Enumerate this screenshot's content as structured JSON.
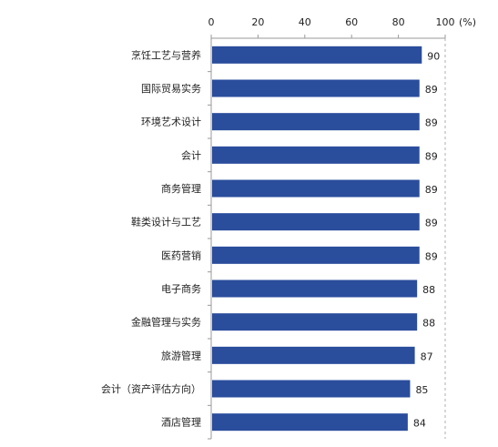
{
  "chart_data": {
    "type": "bar",
    "orientation": "horizontal",
    "categories": [
      "烹饪工艺与营养",
      "国际贸易实务",
      "环境艺术设计",
      "会计",
      "商务管理",
      "鞋类设计与工艺",
      "医药营销",
      "电子商务",
      "金融管理与实务",
      "旅游管理",
      "会计（资产评估方向）",
      "酒店管理"
    ],
    "values": [
      90,
      89,
      89,
      89,
      89,
      89,
      89,
      88,
      88,
      87,
      85,
      84
    ],
    "data_labels": [
      "90",
      "89",
      "89",
      "89",
      "89",
      "89",
      "89",
      "88",
      "88",
      "87",
      "85",
      "84"
    ],
    "title": "",
    "xlabel": "",
    "ylabel": "",
    "xlim": [
      0,
      100
    ],
    "xticks": [
      0,
      20,
      40,
      60,
      80,
      100
    ],
    "xtick_labels": [
      "0",
      "20",
      "40",
      "60",
      "80",
      "100"
    ],
    "x_unit_label": "(%)",
    "x_axis_position": "top",
    "grid": false,
    "reference_line_at": 100,
    "bar_color": "#2A4D9C",
    "axis_color": "#9A9A9A",
    "reference_line_color": "#AFAFAF"
  }
}
